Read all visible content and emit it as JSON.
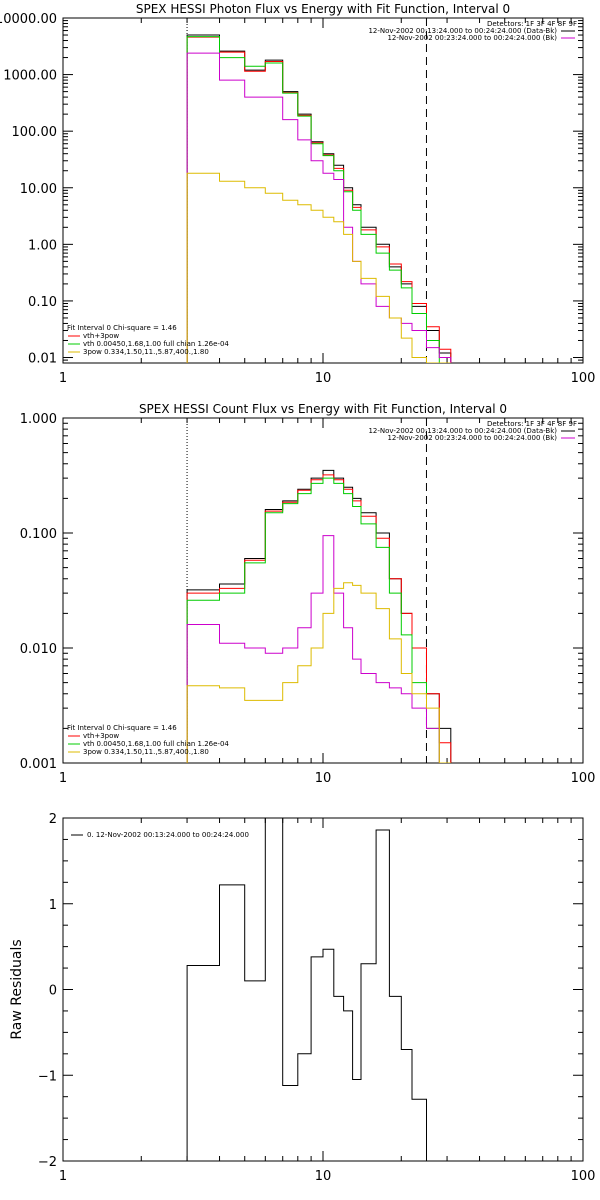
{
  "chart_data": [
    {
      "type": "line",
      "title": "SPEX HESSI Photon Flux vs Energy with Fit Function, Interval 0",
      "xscale": "log",
      "yscale": "log",
      "xlim": [
        1,
        100
      ],
      "ylim": [
        0.008,
        10000
      ],
      "xticks": [
        {
          "v": 1,
          "label": "1"
        },
        {
          "v": 10,
          "label": "10"
        },
        {
          "v": 100,
          "label": "100"
        }
      ],
      "yticks": [
        {
          "v": 0.01,
          "label": "0.01"
        },
        {
          "v": 0.1,
          "label": "0.10"
        },
        {
          "v": 1,
          "label": "1.00"
        },
        {
          "v": 10,
          "label": "10.00"
        },
        {
          "v": 100,
          "label": "100.00"
        },
        {
          "v": 1000,
          "label": "1000.00"
        },
        {
          "v": 10000,
          "label": "10000.00"
        }
      ],
      "vlines": [
        {
          "x": 3,
          "style": "dotted"
        },
        {
          "x": 25,
          "style": "dashed"
        }
      ],
      "header_lines": [
        "Detectors: 1F 3F 4F 8F 9F",
        "12-Nov-2002 00:13:24.000 to 00:24:24.000 (Data-Bk)",
        "12-Nov-2002 00:23:24.000 to 00:24:24.000 (Bk)"
      ],
      "header_legend_colors": [
        "#000000",
        "#cc00cc"
      ],
      "fit_info": "Fit Interval 0   Chi-square = 1.46",
      "legend": [
        {
          "label": "vth+3pow",
          "color": "#ff0000"
        },
        {
          "label": "vth 0.00450,1.68,1.00  full chian 1.26e-04",
          "color": "#00cc00"
        },
        {
          "label": "3pow 0.334,1.50,11.,5.87,400.,1.80",
          "color": "#ddbb00"
        }
      ],
      "edges": [
        3,
        4,
        5,
        6,
        7,
        8,
        9,
        10,
        11,
        12,
        13,
        14,
        16,
        18,
        20,
        22,
        25,
        28,
        31
      ],
      "series": [
        {
          "color": "#000000",
          "values": [
            5000,
            2600,
            1200,
            1800,
            500,
            200,
            65,
            40,
            25,
            10,
            5,
            2,
            1,
            0.4,
            0.2,
            0.08,
            0.03,
            0.012
          ]
        },
        {
          "color": "#ff0000",
          "values": [
            4600,
            2500,
            1150,
            1700,
            480,
            190,
            62,
            38,
            22,
            9,
            4.5,
            1.8,
            0.9,
            0.45,
            0.22,
            0.09,
            0.035,
            0.014
          ]
        },
        {
          "color": "#00cc00",
          "values": [
            4700,
            2000,
            1400,
            1600,
            470,
            185,
            60,
            37,
            20,
            8.5,
            4,
            1.5,
            0.7,
            0.35,
            0.17,
            0.06,
            0.02,
            0.008
          ]
        },
        {
          "color": "#cc00cc",
          "values": [
            2400,
            800,
            400,
            400,
            160,
            70,
            30,
            18,
            14,
            2,
            0.5,
            0.2,
            0.08,
            0.05,
            0.04,
            0.03,
            0.015,
            0.01
          ]
        },
        {
          "color": "#ddbb00",
          "values": [
            18,
            13,
            10,
            8,
            6,
            5,
            4,
            3,
            2.5,
            1.5,
            0.5,
            0.25,
            0.12,
            0.05,
            0.022,
            0.01,
            0.008,
            0.006
          ]
        }
      ]
    },
    {
      "type": "line",
      "title": "SPEX HESSI Count Flux vs Energy with Fit Function, Interval 0",
      "xscale": "log",
      "yscale": "log",
      "xlim": [
        1,
        100
      ],
      "ylim": [
        0.001,
        1
      ],
      "xticks": [
        {
          "v": 1,
          "label": "1"
        },
        {
          "v": 10,
          "label": "10"
        },
        {
          "v": 100,
          "label": "100"
        }
      ],
      "yticks": [
        {
          "v": 0.001,
          "label": "0.001"
        },
        {
          "v": 0.01,
          "label": "0.010"
        },
        {
          "v": 0.1,
          "label": "0.100"
        },
        {
          "v": 1,
          "label": "1.000"
        }
      ],
      "vlines": [
        {
          "x": 3,
          "style": "dotted"
        },
        {
          "x": 25,
          "style": "dashed"
        }
      ],
      "header_lines": [
        "Detectors: 1F 3F 4F 8F 9F",
        "12-Nov-2002 00:13:24.000 to 00:24:24.000 (Data-Bk)",
        "12-Nov-2002 00:23:24.000 to 00:24:24.000 (Bk)"
      ],
      "header_legend_colors": [
        "#000000",
        "#cc00cc"
      ],
      "fit_info": "Fit Interval 0   Chi-square = 1.46",
      "legend": [
        {
          "label": "vth+3pow",
          "color": "#ff0000"
        },
        {
          "label": "vth 0.00450,1.68,1.00  full chian 1.26e-04",
          "color": "#00cc00"
        },
        {
          "label": "3pow 0.334,1.50,11.,5.87,400.,1.80",
          "color": "#ddbb00"
        }
      ],
      "edges": [
        3,
        4,
        5,
        6,
        7,
        8,
        9,
        10,
        11,
        12,
        13,
        14,
        16,
        18,
        20,
        22,
        25,
        28,
        31
      ],
      "series": [
        {
          "color": "#000000",
          "values": [
            0.032,
            0.036,
            0.06,
            0.16,
            0.19,
            0.24,
            0.3,
            0.35,
            0.3,
            0.25,
            0.2,
            0.15,
            0.1,
            0.04,
            0.02,
            0.01,
            0.004,
            0.002
          ]
        },
        {
          "color": "#ff0000",
          "values": [
            0.03,
            0.033,
            0.058,
            0.155,
            0.185,
            0.235,
            0.29,
            0.32,
            0.29,
            0.24,
            0.19,
            0.14,
            0.09,
            0.04,
            0.02,
            0.01,
            0.004,
            0.0015
          ]
        },
        {
          "color": "#00cc00",
          "values": [
            0.026,
            0.03,
            0.055,
            0.15,
            0.18,
            0.22,
            0.27,
            0.3,
            0.27,
            0.22,
            0.17,
            0.12,
            0.075,
            0.03,
            0.013,
            0.005,
            0.002,
            0.0008
          ]
        },
        {
          "color": "#cc00cc",
          "values": [
            0.016,
            0.011,
            0.01,
            0.009,
            0.01,
            0.015,
            0.03,
            0.095,
            0.03,
            0.015,
            0.008,
            0.006,
            0.005,
            0.0045,
            0.004,
            0.003,
            0.002,
            0.001
          ]
        },
        {
          "color": "#ddbb00",
          "values": [
            0.0047,
            0.0045,
            0.0035,
            0.0035,
            0.005,
            0.007,
            0.01,
            0.02,
            0.033,
            0.037,
            0.035,
            0.03,
            0.022,
            0.012,
            0.006,
            0.004,
            0.003,
            0.001
          ]
        }
      ]
    },
    {
      "type": "line",
      "title": "",
      "xscale": "log",
      "yscale": "linear",
      "xlim": [
        1,
        100
      ],
      "ylim": [
        -2,
        2
      ],
      "ylabel": "Raw Residuals",
      "xticks": [
        {
          "v": 1,
          "label": "1"
        },
        {
          "v": 10,
          "label": "10"
        },
        {
          "v": 100,
          "label": "100"
        }
      ],
      "yticks": [
        {
          "v": -2,
          "label": "−2"
        },
        {
          "v": -1,
          "label": "−1"
        },
        {
          "v": 0,
          "label": "0"
        },
        {
          "v": 1,
          "label": "1"
        },
        {
          "v": 2,
          "label": "2"
        }
      ],
      "legend": [
        {
          "label": "0. 12-Nov-2002 00:13:24.000 to 00:24:24.000",
          "color": "#000000"
        }
      ],
      "edges": [
        3,
        4,
        5,
        6,
        7,
        8,
        9,
        10,
        11,
        12,
        13,
        14,
        16,
        18,
        20,
        22,
        25
      ],
      "series": [
        {
          "color": "#000000",
          "values": [
            0.28,
            1.22,
            0.1,
            2.05,
            -1.12,
            -0.75,
            0.38,
            0.47,
            -0.08,
            -0.25,
            -1.05,
            0.3,
            1.86,
            -0.08,
            -0.7,
            -1.28
          ]
        }
      ]
    }
  ]
}
